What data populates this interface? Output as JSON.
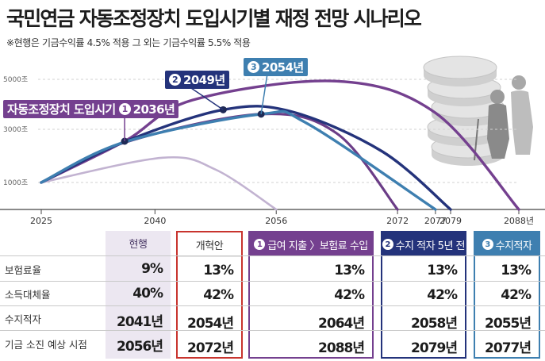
{
  "title": "국민연금 자동조정장치 도입시기별 재정 전망 시나리오",
  "subtitle": "※현행은 기금수익률 4.5% 적용 그 외는 기금수익률 5.5% 적용",
  "colors": {
    "current": "#c2b3d1",
    "reform": "#6b3d87",
    "s1": "#74408f",
    "s2": "#24337b",
    "s3": "#3e7fb0",
    "reform_border": "#c8342e"
  },
  "chart_data": {
    "type": "line",
    "x_ticks": [
      "2025",
      "2040",
      "2056",
      "2072",
      "2077",
      "2079",
      "2088년"
    ],
    "y_ticks": [
      "5000조",
      "3000조",
      "1000조"
    ],
    "series": [
      {
        "name": "현행",
        "points": [
          [
            2025,
            1000
          ],
          [
            2041,
            1960
          ],
          [
            2048,
            1500
          ],
          [
            2056,
            0
          ]
        ]
      },
      {
        "name": "개혁안",
        "points": [
          [
            2025,
            1000
          ],
          [
            2036,
            2550
          ],
          [
            2054,
            3650
          ],
          [
            2064,
            2900
          ],
          [
            2072,
            0
          ]
        ]
      },
      {
        "name": "① 급여 지출 > 보험료 수입",
        "points": [
          [
            2025,
            1000
          ],
          [
            2036,
            2600
          ],
          [
            2045,
            4200
          ],
          [
            2064,
            4930
          ],
          [
            2077,
            3700
          ],
          [
            2088,
            0
          ]
        ]
      },
      {
        "name": "② 수지 적자 5년 전",
        "points": [
          [
            2025,
            1000
          ],
          [
            2036,
            2580
          ],
          [
            2049,
            3820
          ],
          [
            2058,
            3750
          ],
          [
            2070,
            2200
          ],
          [
            2079,
            0
          ]
        ]
      },
      {
        "name": "③ 수지적자",
        "points": [
          [
            2025,
            1000
          ],
          [
            2036,
            2570
          ],
          [
            2054,
            3650
          ],
          [
            2060,
            3300
          ],
          [
            2077,
            0
          ]
        ]
      }
    ],
    "annotations": [
      {
        "num": "1",
        "label": "자동조정장치 도입시기",
        "year": "2036년",
        "x": 2036,
        "y": 2600
      },
      {
        "num": "2",
        "label": "",
        "year": "2049년",
        "x": 2049,
        "y": 3820
      },
      {
        "num": "3",
        "label": "",
        "year": "2054년",
        "x": 2054,
        "y": 3650
      }
    ]
  },
  "table": {
    "row_labels": [
      "보험료율",
      "소득대체율",
      "수지적자",
      "기금 소진 예상 시점"
    ],
    "columns": [
      {
        "key": "current",
        "num": "",
        "header": "현행",
        "values": [
          "9%",
          "40%",
          "2041년",
          "2056년"
        ]
      },
      {
        "key": "reform",
        "num": "",
        "header": "개혁안",
        "values": [
          "13%",
          "42%",
          "2054년",
          "2072년"
        ]
      },
      {
        "key": "s1",
        "num": "1",
        "header": "급여 지출 〉보험료 수입",
        "values": [
          "13%",
          "42%",
          "2064년",
          "2088년"
        ]
      },
      {
        "key": "s2",
        "num": "2",
        "header": "수지 적자 5년 전",
        "values": [
          "13%",
          "42%",
          "2058년",
          "2079년"
        ]
      },
      {
        "key": "s3",
        "num": "3",
        "header": "수지적자",
        "values": [
          "13%",
          "42%",
          "2055년",
          "2077년"
        ]
      }
    ]
  }
}
